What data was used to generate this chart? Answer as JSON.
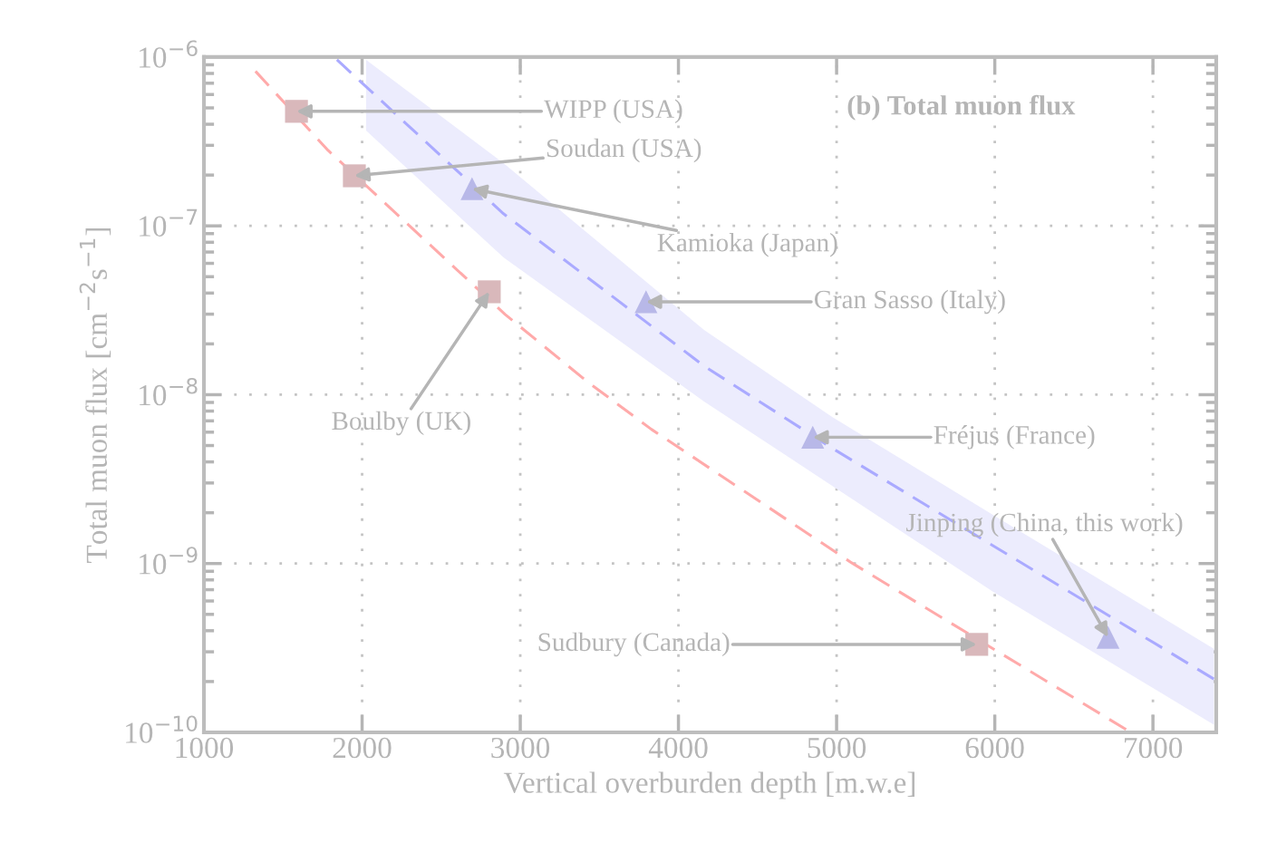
{
  "chart_data": {
    "type": "scatter",
    "title": "(b) Total muon flux",
    "xlabel": "Vertical overburden depth [m.w.e]",
    "ylabel": "Total muon flux [cm$^{−2}$s$^{−1}$]",
    "log": "y",
    "xlim": [
      1000,
      7400
    ],
    "xticks": [
      1000,
      2000,
      3000,
      4000,
      5000,
      6000,
      7000
    ],
    "ylim": [
      1e-10,
      1e-06
    ],
    "yticks": [
      {
        "value": 1e-10,
        "label": "10$^{−10}$"
      },
      {
        "value": 1e-09,
        "label": "10$^{−9}$"
      },
      {
        "value": 1e-08,
        "label": "10$^{−8}$"
      },
      {
        "value": 1e-07,
        "label": "10$^{−7}$"
      },
      {
        "value": 1e-06,
        "label": "10$^{−6}$"
      }
    ],
    "grid": true,
    "series": [
      {
        "type": "line",
        "line_style": "dashed",
        "marker": "none",
        "color": "#ffaaaa",
        "x": [
          1326,
          1785,
          2904,
          3426,
          3829,
          5095,
          6830
        ],
        "values": [
          8.24e-07,
          2.8e-07,
          2.99e-08,
          1.19e-08,
          6.24e-09,
          1.01e-09,
          1.04e-10
        ]
      },
      {
        "type": "line",
        "line_style": "dashed",
        "marker": "none",
        "color": "#aaaaff",
        "x": [
          1841,
          2025,
          2894,
          4162,
          4974,
          5986,
          7385
        ],
        "values": [
          9.64e-07,
          6.68e-07,
          1.18e-07,
          1.48e-08,
          4.81e-09,
          1.28e-09,
          2.07e-10
        ],
        "lower": [
          null,
          3.67e-07,
          6.5e-08,
          9.12e-09,
          2.88e-09,
          6.84e-10,
          1.11e-10
        ],
        "upper": [
          null,
          9.64e-07,
          2.35e-07,
          2.42e-08,
          7.36e-09,
          1.95e-09,
          3.13e-10
        ]
      },
      {
        "marker": "square",
        "color": "#d9b8bb",
        "x": [
          1585,
          1951,
          2804,
          5886
        ],
        "values": [
          4.77e-07,
          1.98e-07,
          4.07e-08,
          3.32e-10
        ]
      },
      {
        "marker": "triangle",
        "color": "#b8b8e8",
        "x": [
          2695,
          3795,
          4849,
          6716
        ],
        "values": [
          1.66e-07,
          3.55e-08,
          5.6e-09,
          3.66e-10
        ]
      }
    ],
    "annotations": [
      {
        "text": "WIPP (USA)",
        "x": 1585,
        "y": 4.77e-07
      },
      {
        "text": "Soudan (USA)",
        "x": 1951,
        "y": 1.98e-07
      },
      {
        "text": "Kamioka (Japan)",
        "x": 2695,
        "y": 1.66e-07
      },
      {
        "text": "Gran Sasso (Italy)",
        "x": 3795,
        "y": 3.55e-08
      },
      {
        "text": "Fréjus (France)",
        "x": 4849,
        "y": 5.6e-09
      },
      {
        "text": "Jinping (China, this work)",
        "x": 6716,
        "y": 3.66e-10
      },
      {
        "text": "Sudbury (Canada)",
        "x": 5886,
        "y": 3.32e-10
      },
      {
        "text": "Boulby (UK)",
        "x": 2804,
        "y": 4.07e-08
      }
    ]
  }
}
